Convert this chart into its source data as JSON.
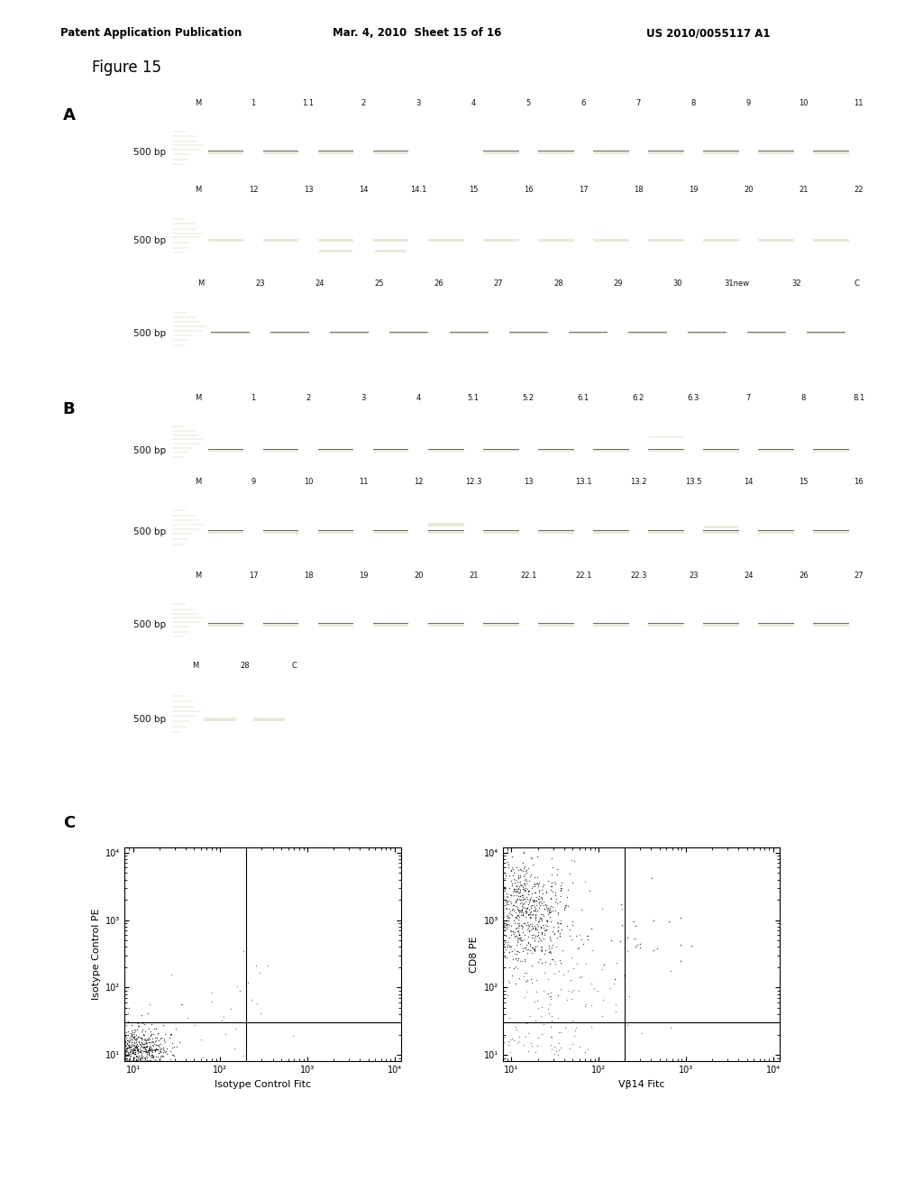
{
  "title_header": "Patent Application Publication",
  "date_header": "Mar. 4, 2010  Sheet 15 of 16",
  "patent_number": "US 2010/0055117 A1",
  "figure_title": "Figure 15",
  "panel_A_label": "A",
  "panel_B_label": "B",
  "panel_C_label": "C",
  "gel_A_row1_labels": [
    "M",
    "1",
    "1.1",
    "2",
    "3",
    "4",
    "5",
    "6",
    "7",
    "8",
    "9",
    "10",
    "11"
  ],
  "gel_A_row2_labels": [
    "M",
    "12",
    "13",
    "14",
    "14.1",
    "15",
    "16",
    "17",
    "18",
    "19",
    "20",
    "21",
    "22"
  ],
  "gel_A_row3_labels": [
    "M",
    "23",
    "24",
    "25",
    "26",
    "27",
    "28",
    "29",
    "30",
    "31new",
    "32",
    "C"
  ],
  "gel_B_row1_labels": [
    "M",
    "1",
    "2",
    "3",
    "4",
    "5.1",
    "5.2",
    "6.1",
    "6.2",
    "6.3",
    "7",
    "8",
    "8.1"
  ],
  "gel_B_row2_labels": [
    "M",
    "9",
    "10",
    "11",
    "12",
    "12.3",
    "13",
    "13.1",
    "13.2",
    "13.5",
    "14",
    "15",
    "16"
  ],
  "gel_B_row3_labels": [
    "M",
    "17",
    "18",
    "19",
    "20",
    "21",
    "22.1",
    "22.1",
    "22.3",
    "23",
    "24",
    "26",
    "27"
  ],
  "gel_B_row4_labels": [
    "M",
    "28",
    "C"
  ],
  "flow_left_xlabel": "Isotype Control Fitc",
  "flow_left_ylabel": "Isotype Control PE",
  "flow_right_xlabel": "Vβ14 Fitc",
  "flow_right_ylabel": "CD8 PE",
  "bg_color": "#ffffff",
  "gel_bg_color": "#000000",
  "gel_band_color_bright": "#e8e8d8",
  "gel_band_color_dim": "#909080",
  "text_color": "#000000"
}
